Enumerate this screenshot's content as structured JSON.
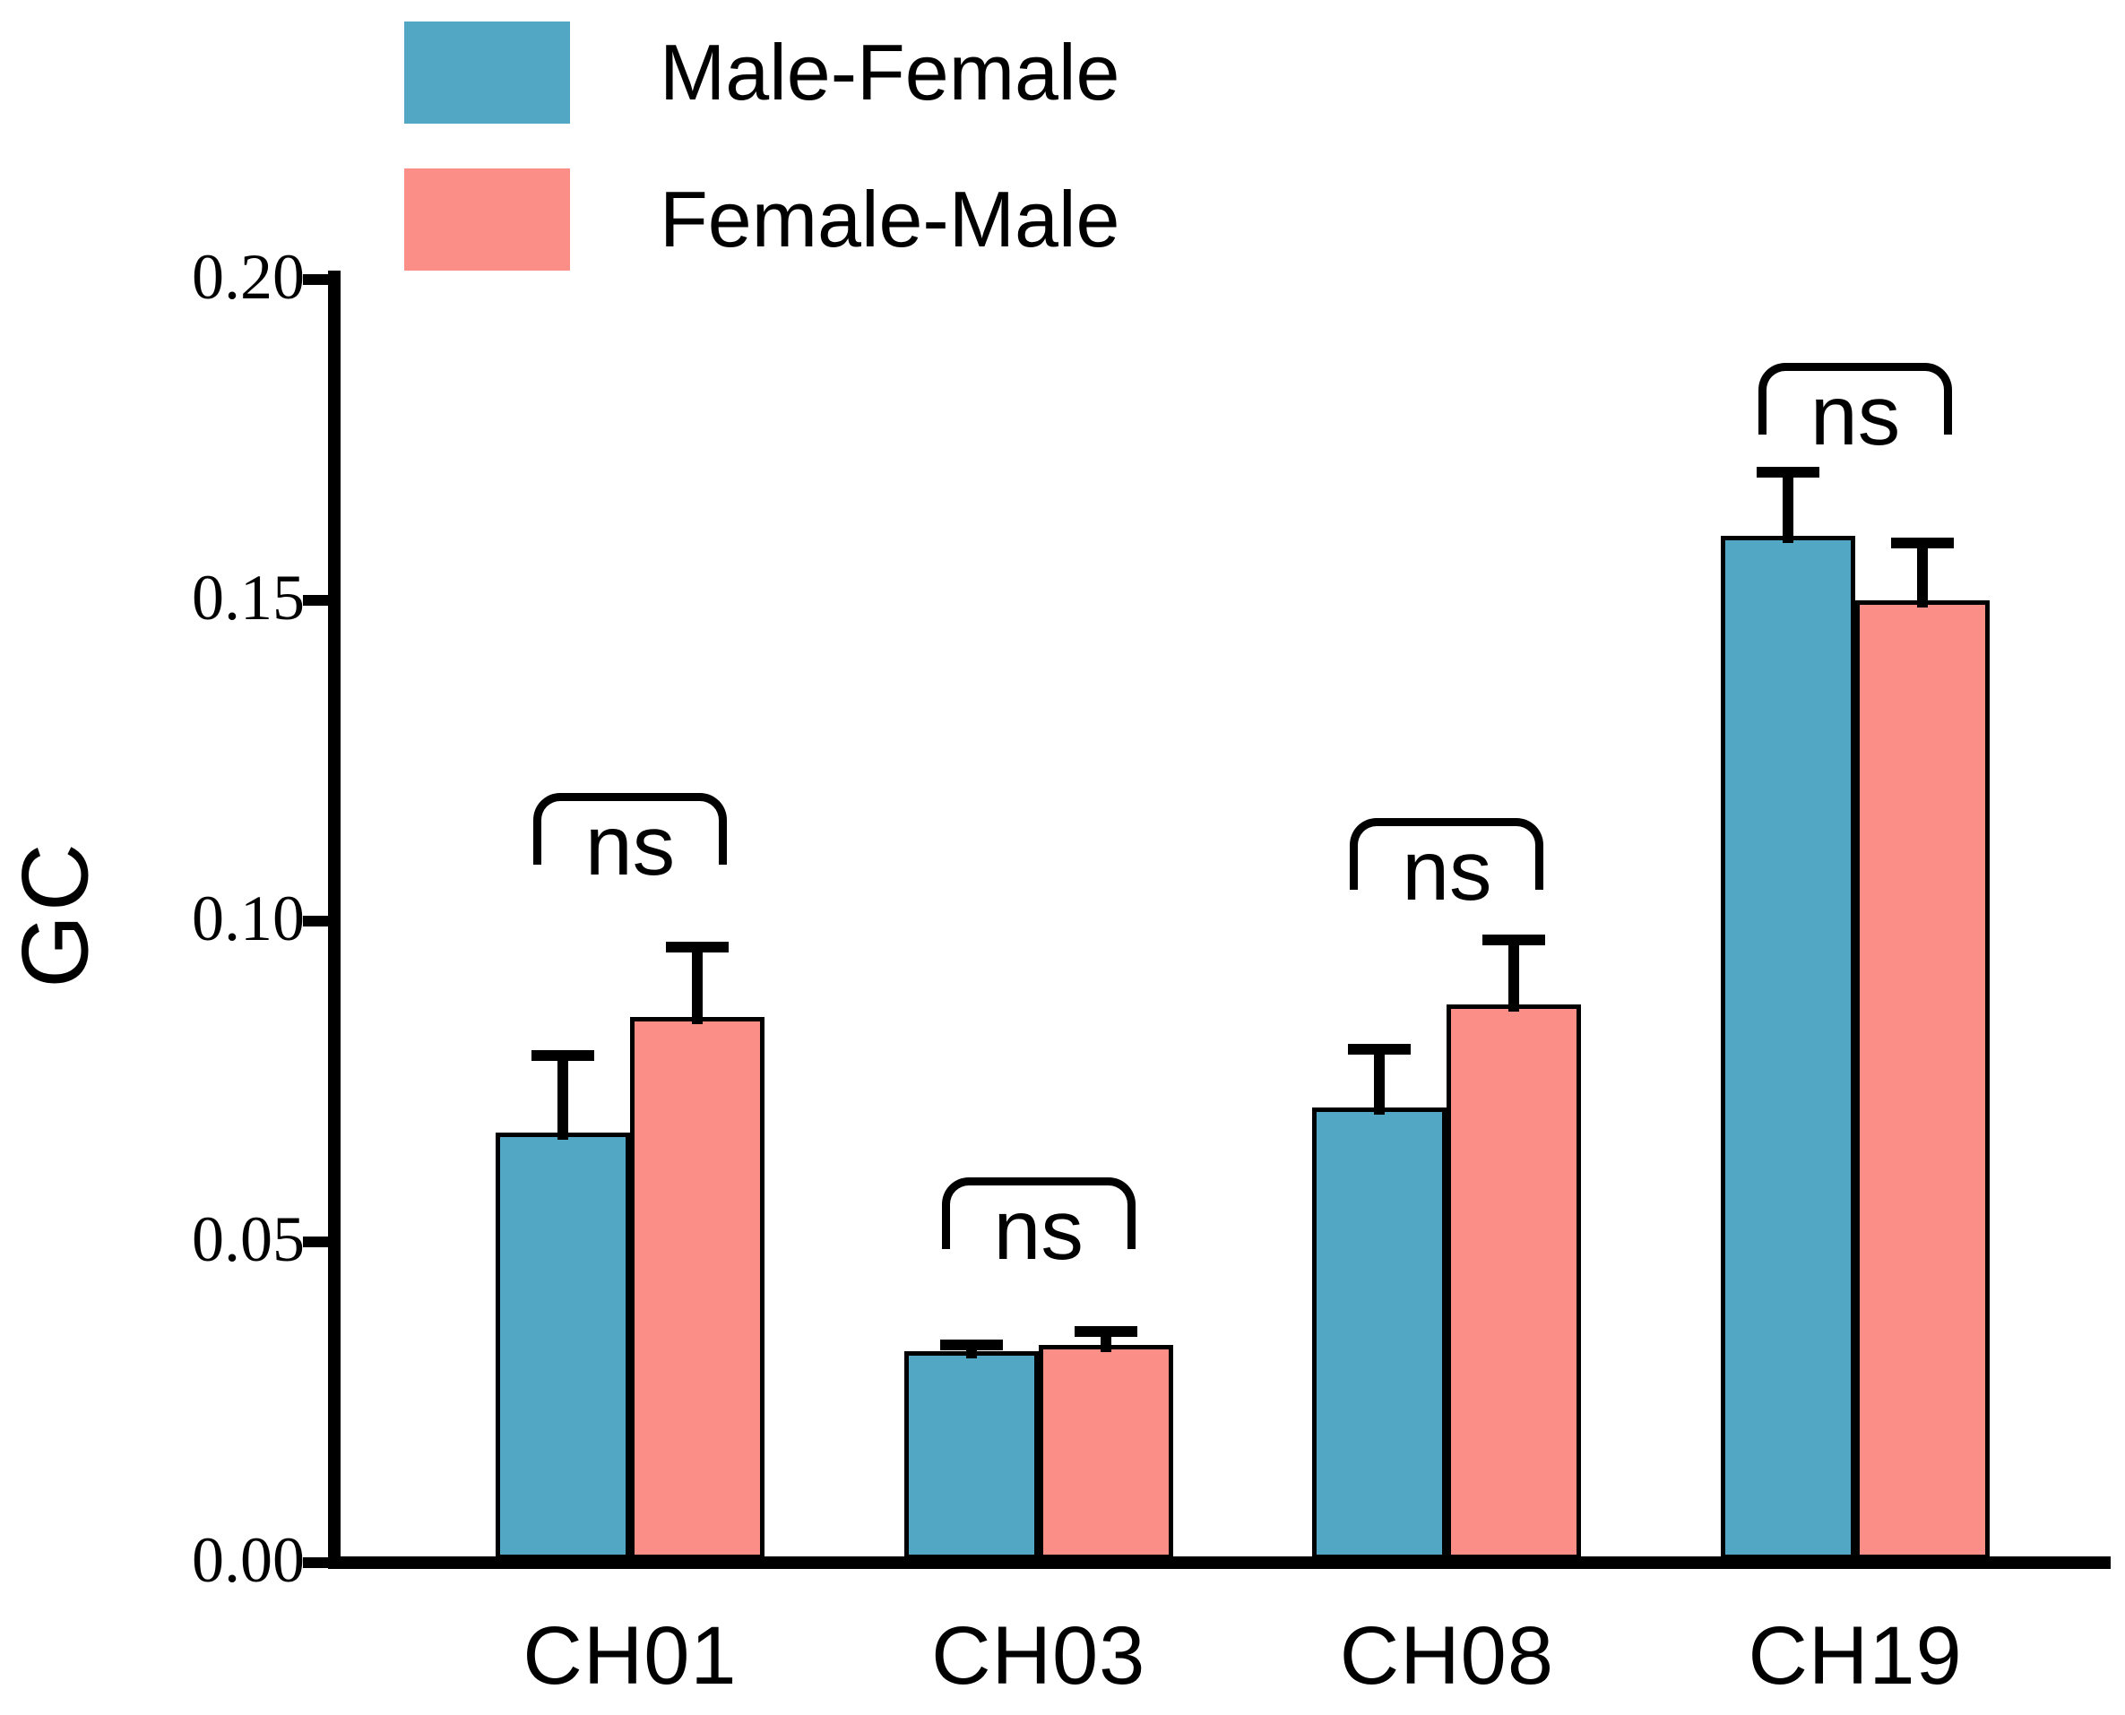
{
  "chart_data": {
    "type": "bar",
    "title": "",
    "ylabel": "GC",
    "xlabel": "",
    "categories": [
      "CH01",
      "CH03",
      "CH08",
      "CH19"
    ],
    "series": [
      {
        "name": "Male-Female",
        "color": "#52A7C5",
        "values": [
          0.067,
          0.033,
          0.071,
          0.16
        ],
        "errors_plus": [
          0.012,
          0.001,
          0.009,
          0.01
        ]
      },
      {
        "name": "Female-Male",
        "color": "#FB8E87",
        "values": [
          0.085,
          0.034,
          0.087,
          0.15
        ],
        "errors_plus": [
          0.011,
          0.002,
          0.01,
          0.009
        ]
      }
    ],
    "annotations": [
      {
        "category": "CH01",
        "label": "ns",
        "y": 0.12
      },
      {
        "category": "CH03",
        "label": "ns",
        "y": 0.06
      },
      {
        "category": "CH08",
        "label": "ns",
        "y": 0.116
      },
      {
        "category": "CH19",
        "label": "ns",
        "y": 0.187
      }
    ],
    "y_ticks": [
      "0.00",
      "0.05",
      "0.10",
      "0.15",
      "0.20"
    ],
    "ylim": [
      0.0,
      0.2
    ],
    "grid": false,
    "legend_position": "top-left",
    "bar_outline_color": "#000000",
    "error_bar_style": "upper-only"
  }
}
